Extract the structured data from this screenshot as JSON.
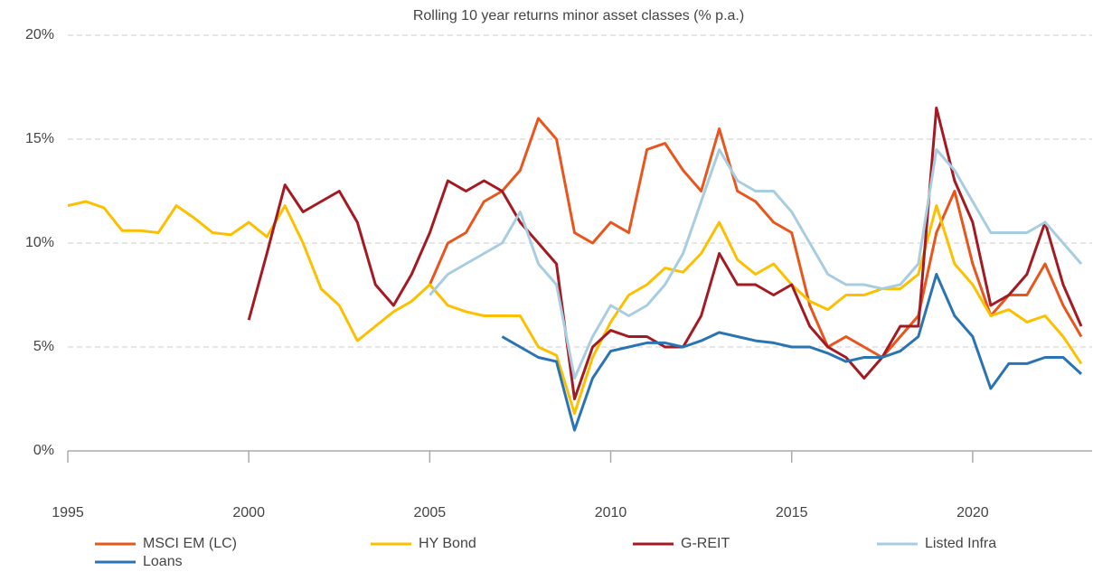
{
  "chart_data": {
    "type": "line",
    "title": "Rolling 10 year returns minor asset classes (% p.a.)",
    "x": [
      1995,
      1995.5,
      1996,
      1996.5,
      1997,
      1997.5,
      1998,
      1998.5,
      1999,
      1999.5,
      2000,
      2000.5,
      2001,
      2001.5,
      2002,
      2002.5,
      2003,
      2003.5,
      2004,
      2004.5,
      2005,
      2005.5,
      2006,
      2006.5,
      2007,
      2007.5,
      2008,
      2008.5,
      2009,
      2009.5,
      2010,
      2010.5,
      2011,
      2011.5,
      2012,
      2012.5,
      2013,
      2013.5,
      2014,
      2014.5,
      2015,
      2015.5,
      2016,
      2016.5,
      2017,
      2017.5,
      2018,
      2018.5,
      2019,
      2019.5,
      2020,
      2020.5,
      2021,
      2021.5,
      2022,
      2022.5,
      2023
    ],
    "series": [
      {
        "name": "MSCI EM (LC)",
        "color": "#e8561e",
        "values": [
          null,
          null,
          null,
          null,
          null,
          null,
          null,
          null,
          null,
          null,
          null,
          null,
          null,
          null,
          null,
          null,
          null,
          null,
          null,
          null,
          8.0,
          10.0,
          10.5,
          12.0,
          12.5,
          13.5,
          16.0,
          15.0,
          10.5,
          10.0,
          11.0,
          10.5,
          14.5,
          14.8,
          13.5,
          12.5,
          15.5,
          12.5,
          12.0,
          11.0,
          10.5,
          7.0,
          5.0,
          5.5,
          5.0,
          4.5,
          5.5,
          6.5,
          10.5,
          12.5,
          9.0,
          6.5,
          7.5,
          7.5,
          9.0,
          7.0,
          5.5
        ]
      },
      {
        "name": "HY Bond",
        "color": "#fcc000",
        "values": [
          11.8,
          12.0,
          11.7,
          10.6,
          10.6,
          10.5,
          11.8,
          11.2,
          10.5,
          10.4,
          11.0,
          10.3,
          11.8,
          10.0,
          7.8,
          7.0,
          5.3,
          6.0,
          6.7,
          7.2,
          8.0,
          7.0,
          6.7,
          6.5,
          6.5,
          6.5,
          5.0,
          4.6,
          1.8,
          4.5,
          6.2,
          7.5,
          8.0,
          8.8,
          8.6,
          9.5,
          11.0,
          9.2,
          8.5,
          9.0,
          8.0,
          7.2,
          6.8,
          7.5,
          7.5,
          7.8,
          7.8,
          8.5,
          11.8,
          9.0,
          8.0,
          6.5,
          6.8,
          6.2,
          6.5,
          5.5,
          4.2
        ]
      },
      {
        "name": "G-REIT",
        "color": "#a31a23",
        "values": [
          null,
          null,
          null,
          null,
          null,
          null,
          null,
          null,
          null,
          null,
          6.3,
          9.5,
          12.8,
          11.5,
          12.0,
          12.5,
          11.0,
          8.0,
          7.0,
          8.5,
          10.5,
          13.0,
          12.5,
          13.0,
          12.5,
          11.0,
          10.0,
          9.0,
          2.5,
          5.0,
          5.8,
          5.5,
          5.5,
          5.0,
          5.0,
          6.5,
          9.5,
          8.0,
          8.0,
          7.5,
          8.0,
          6.0,
          5.0,
          4.5,
          3.5,
          4.5,
          6.0,
          6.0,
          16.5,
          13.0,
          11.0,
          7.0,
          7.5,
          8.5,
          11.0,
          8.0,
          6.0
        ]
      },
      {
        "name": "Listed Infra",
        "color": "#a8cde0",
        "values": [
          null,
          null,
          null,
          null,
          null,
          null,
          null,
          null,
          null,
          null,
          null,
          null,
          null,
          null,
          null,
          null,
          null,
          null,
          null,
          null,
          7.5,
          8.5,
          9.0,
          9.5,
          10.0,
          11.5,
          9.0,
          8.0,
          3.5,
          5.5,
          7.0,
          6.5,
          7.0,
          8.0,
          9.5,
          12.0,
          14.5,
          13.0,
          12.5,
          12.5,
          11.5,
          10.0,
          8.5,
          8.0,
          8.0,
          7.8,
          8.0,
          9.0,
          14.5,
          13.5,
          12.0,
          10.5,
          10.5,
          10.5,
          11.0,
          10.0,
          9.0
        ]
      },
      {
        "name": "Loans",
        "color": "#2a74b4",
        "values": [
          null,
          null,
          null,
          null,
          null,
          null,
          null,
          null,
          null,
          null,
          null,
          null,
          null,
          null,
          null,
          null,
          null,
          null,
          null,
          null,
          null,
          null,
          null,
          null,
          5.5,
          5.0,
          4.5,
          4.3,
          1.0,
          3.5,
          4.8,
          5.0,
          5.2,
          5.2,
          5.0,
          5.3,
          5.7,
          5.5,
          5.3,
          5.2,
          5.0,
          5.0,
          4.7,
          4.3,
          4.5,
          4.5,
          4.8,
          5.5,
          8.5,
          6.5,
          5.5,
          3.0,
          4.2,
          4.2,
          4.5,
          4.5,
          3.7
        ]
      }
    ],
    "xlim": [
      1995,
      2023.3
    ],
    "xticks": [
      1995,
      2000,
      2005,
      2010,
      2015,
      2020
    ],
    "ylim": [
      0,
      20
    ],
    "yticks": [
      {
        "value": 0,
        "label": "0%"
      },
      {
        "value": 5,
        "label": "5%"
      },
      {
        "value": 10,
        "label": "10%"
      },
      {
        "value": 15,
        "label": "15%"
      },
      {
        "value": 20,
        "label": "20%"
      }
    ],
    "grid": true,
    "legend": "bottom"
  }
}
